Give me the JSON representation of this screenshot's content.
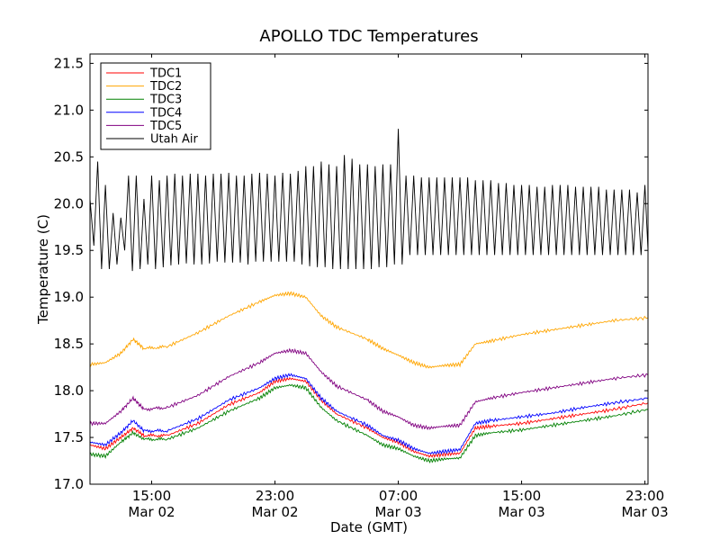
{
  "chart_data": {
    "type": "line",
    "title": "APOLLO TDC Temperatures",
    "xlabel": "Date (GMT)",
    "ylabel": "Temperature (C)",
    "x_unit": "hours since Mar 02 11:00 GMT",
    "xlim": [
      0,
      36.2
    ],
    "ylim": [
      17.0,
      21.6
    ],
    "yticks": [
      17.0,
      17.5,
      18.0,
      18.5,
      19.0,
      19.5,
      20.0,
      20.5,
      21.0,
      21.5
    ],
    "ytick_labels": [
      "17.0",
      "17.5",
      "18.0",
      "18.5",
      "19.0",
      "19.5",
      "20.0",
      "20.5",
      "21.0",
      "21.5"
    ],
    "xticks": [
      {
        "x": 4,
        "line1": "15:00",
        "line2": "Mar 02"
      },
      {
        "x": 12,
        "line1": "23:00",
        "line2": "Mar 02"
      },
      {
        "x": 20,
        "line1": "07:00",
        "line2": "Mar 03"
      },
      {
        "x": 28,
        "line1": "15:00",
        "line2": "Mar 03"
      },
      {
        "x": 36,
        "line1": "23:00",
        "line2": "Mar 03"
      }
    ],
    "legend_position": "top-left",
    "series": [
      {
        "name": "TDC1",
        "color": "#ff0000",
        "x": [
          0,
          1,
          2,
          2.8,
          3.5,
          5,
          7,
          9,
          11,
          12,
          13,
          14,
          15,
          16,
          18,
          19,
          20,
          21,
          22,
          23,
          24,
          25,
          26,
          28,
          30,
          32,
          34,
          36.2
        ],
        "y": [
          17.42,
          17.38,
          17.5,
          17.6,
          17.52,
          17.52,
          17.65,
          17.85,
          17.98,
          18.1,
          18.13,
          18.1,
          17.9,
          17.75,
          17.6,
          17.5,
          17.45,
          17.35,
          17.3,
          17.32,
          17.33,
          17.6,
          17.62,
          17.65,
          17.7,
          17.75,
          17.8,
          17.87
        ]
      },
      {
        "name": "TDC2",
        "color": "#ffa500",
        "x": [
          0,
          1,
          2,
          2.8,
          3.5,
          5,
          7,
          9,
          11,
          12,
          13,
          14,
          15,
          16,
          18,
          19,
          20,
          21,
          22,
          23,
          24,
          25,
          26,
          28,
          30,
          32,
          34,
          36.2
        ],
        "y": [
          18.28,
          18.3,
          18.4,
          18.55,
          18.45,
          18.47,
          18.62,
          18.8,
          18.95,
          19.02,
          19.04,
          19.0,
          18.8,
          18.68,
          18.55,
          18.45,
          18.38,
          18.3,
          18.25,
          18.27,
          18.28,
          18.5,
          18.53,
          18.6,
          18.65,
          18.7,
          18.75,
          18.78
        ]
      },
      {
        "name": "TDC3",
        "color": "#008000",
        "x": [
          0,
          1,
          2,
          2.8,
          3.5,
          5,
          7,
          9,
          11,
          12,
          13,
          14,
          15,
          16,
          18,
          19,
          20,
          21,
          22,
          23,
          24,
          25,
          26,
          28,
          30,
          32,
          34,
          36.2
        ],
        "y": [
          17.32,
          17.3,
          17.45,
          17.55,
          17.48,
          17.48,
          17.6,
          17.78,
          17.92,
          18.03,
          18.06,
          18.03,
          17.82,
          17.68,
          17.52,
          17.42,
          17.38,
          17.3,
          17.25,
          17.27,
          17.28,
          17.52,
          17.55,
          17.58,
          17.63,
          17.68,
          17.73,
          17.8
        ]
      },
      {
        "name": "TDC4",
        "color": "#0000ff",
        "x": [
          0,
          1,
          2,
          2.8,
          3.5,
          5,
          7,
          9,
          11,
          12,
          13,
          14,
          15,
          16,
          18,
          19,
          20,
          21,
          22,
          23,
          24,
          25,
          26,
          28,
          30,
          32,
          34,
          36.2
        ],
        "y": [
          17.45,
          17.42,
          17.55,
          17.68,
          17.57,
          17.57,
          17.7,
          17.9,
          18.03,
          18.13,
          18.17,
          18.13,
          17.92,
          17.78,
          17.63,
          17.52,
          17.47,
          17.38,
          17.33,
          17.35,
          17.37,
          17.65,
          17.68,
          17.72,
          17.76,
          17.82,
          17.87,
          17.92
        ]
      },
      {
        "name": "TDC5",
        "color": "#800080",
        "x": [
          0,
          1,
          2,
          2.8,
          3.5,
          5,
          7,
          9,
          11,
          12,
          13,
          14,
          15,
          16,
          18,
          19,
          20,
          21,
          22,
          23,
          24,
          25,
          26,
          28,
          30,
          32,
          34,
          36.2
        ],
        "y": [
          17.65,
          17.65,
          17.78,
          17.92,
          17.8,
          17.82,
          17.95,
          18.15,
          18.3,
          18.4,
          18.43,
          18.4,
          18.2,
          18.05,
          17.9,
          17.78,
          17.72,
          17.63,
          17.6,
          17.62,
          17.63,
          17.88,
          17.92,
          17.98,
          18.03,
          18.08,
          18.13,
          18.17
        ]
      },
      {
        "name": "Utah Air",
        "color": "#000000",
        "x": [
          0.0,
          0.25,
          0.5,
          0.75,
          1.0,
          1.25,
          1.5,
          1.75,
          2.0,
          2.25,
          2.5,
          2.75,
          3.0,
          3.25,
          3.5,
          3.75,
          4.0,
          4.25,
          4.5,
          4.75,
          5.0,
          5.25,
          5.5,
          5.75,
          6.0,
          6.25,
          6.5,
          6.75,
          7.0,
          7.25,
          7.5,
          7.75,
          8.0,
          8.25,
          8.5,
          8.75,
          9.0,
          9.25,
          9.5,
          9.75,
          10.0,
          10.25,
          10.5,
          10.75,
          11.0,
          11.25,
          11.5,
          11.75,
          12.0,
          12.25,
          12.5,
          12.75,
          13.0,
          13.25,
          13.5,
          13.75,
          14.0,
          14.25,
          14.5,
          14.75,
          15.0,
          15.25,
          15.5,
          15.75,
          16.0,
          16.25,
          16.5,
          16.75,
          17.0,
          17.25,
          17.5,
          17.75,
          18.0,
          18.25,
          18.5,
          18.75,
          19.0,
          19.25,
          19.5,
          19.75,
          20.0,
          20.25,
          20.5,
          20.75,
          21.0,
          21.25,
          21.5,
          21.75,
          22.0,
          22.25,
          22.5,
          22.75,
          23.0,
          23.25,
          23.5,
          23.75,
          24.0,
          24.25,
          24.5,
          24.75,
          25.0,
          25.25,
          25.5,
          25.75,
          26.0,
          26.25,
          26.5,
          26.75,
          27.0,
          27.25,
          27.5,
          27.75,
          28.0,
          28.25,
          28.5,
          28.75,
          29.0,
          29.25,
          29.5,
          29.75,
          30.0,
          30.25,
          30.5,
          30.75,
          31.0,
          31.25,
          31.5,
          31.75,
          32.0,
          32.25,
          32.5,
          32.75,
          33.0,
          33.25,
          33.5,
          33.75,
          34.0,
          34.25,
          34.5,
          34.75,
          35.0,
          35.25,
          35.5,
          35.75,
          36.0,
          36.2
        ],
        "y": [
          20.05,
          19.55,
          20.45,
          19.3,
          20.2,
          19.3,
          19.9,
          19.35,
          19.85,
          19.5,
          20.3,
          19.28,
          20.3,
          19.3,
          20.05,
          19.35,
          20.3,
          19.3,
          20.25,
          19.32,
          20.3,
          19.34,
          20.32,
          19.35,
          20.3,
          19.36,
          20.32,
          19.35,
          20.32,
          19.35,
          20.3,
          19.36,
          20.32,
          19.38,
          20.32,
          19.37,
          20.33,
          19.37,
          20.3,
          19.37,
          20.3,
          19.35,
          20.32,
          19.38,
          20.33,
          19.38,
          20.32,
          19.38,
          20.3,
          19.38,
          20.33,
          19.38,
          20.32,
          19.38,
          20.35,
          19.35,
          20.4,
          19.33,
          20.4,
          19.32,
          20.45,
          19.32,
          20.42,
          19.3,
          20.4,
          19.3,
          20.52,
          19.3,
          20.48,
          19.3,
          20.42,
          19.3,
          20.42,
          19.3,
          20.4,
          19.32,
          20.42,
          19.32,
          20.42,
          19.35,
          20.8,
          19.35,
          20.3,
          19.45,
          20.3,
          19.45,
          20.28,
          19.45,
          20.28,
          19.45,
          20.28,
          19.45,
          20.28,
          19.45,
          20.28,
          19.45,
          20.28,
          19.45,
          20.28,
          19.45,
          20.25,
          19.45,
          20.25,
          19.45,
          20.25,
          19.45,
          20.22,
          19.45,
          20.22,
          19.45,
          20.2,
          19.45,
          20.2,
          19.45,
          20.2,
          19.45,
          20.18,
          19.45,
          20.18,
          19.45,
          20.2,
          19.45,
          20.2,
          19.45,
          20.2,
          19.45,
          20.18,
          19.45,
          20.18,
          19.45,
          20.18,
          19.45,
          20.18,
          19.45,
          20.15,
          19.45,
          20.15,
          19.45,
          20.15,
          19.45,
          20.15,
          19.45,
          20.12,
          19.45,
          20.2,
          19.5
        ]
      }
    ]
  }
}
